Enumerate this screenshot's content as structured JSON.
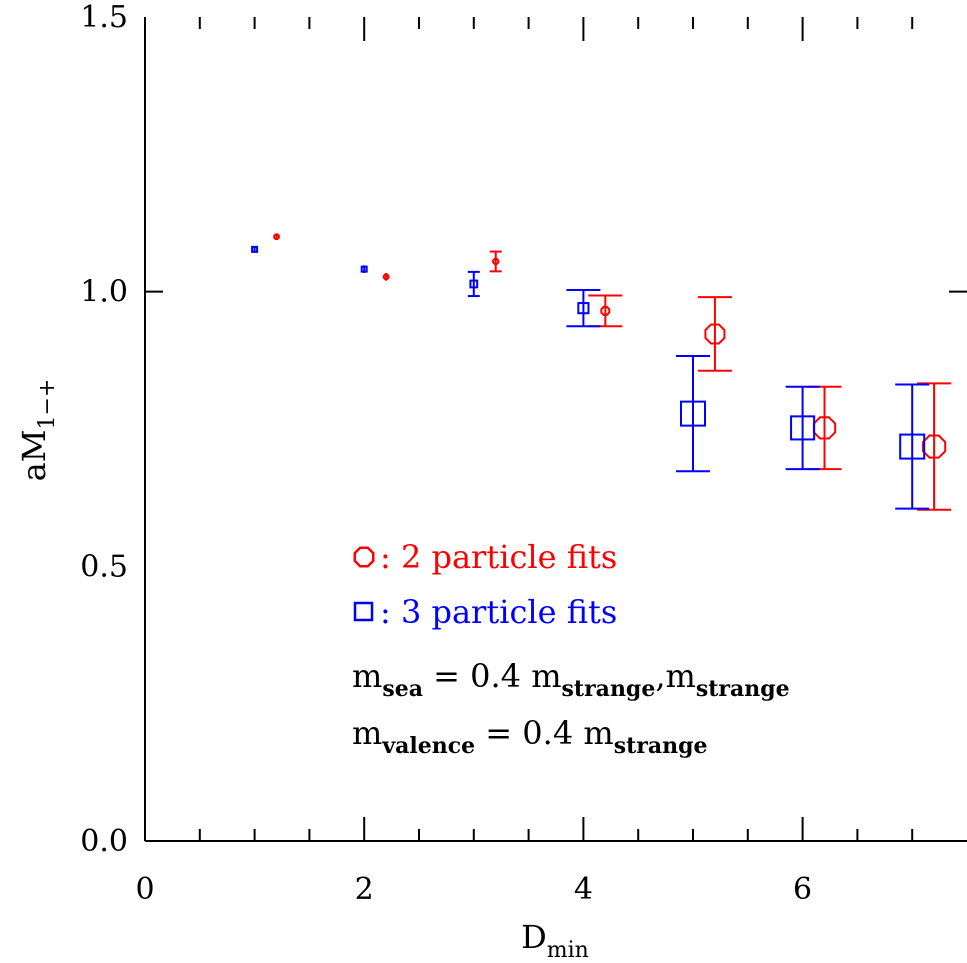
{
  "chart_data": {
    "type": "scatter",
    "title": "",
    "xlabel": "D",
    "xlabel_sub": "min",
    "ylabel": "aM",
    "ylabel_sub": "1−+",
    "xlim": [
      0,
      7.5
    ],
    "ylim": [
      0,
      1.5
    ],
    "x_ticks": [
      "0",
      "2",
      "4",
      "6"
    ],
    "y_ticks": [
      "0.0",
      "0.5",
      "1.0",
      "1.5"
    ],
    "grid": false,
    "legend_position": "lower-center",
    "series": [
      {
        "name": "2 particle fits",
        "legend_symbol": "○",
        "legend_text": ": 2 particle fits",
        "marker": "octagon",
        "color": "#ff0000",
        "points": [
          {
            "x": 1.2,
            "y": 1.1,
            "err": 0.003
          },
          {
            "x": 2.2,
            "y": 1.027,
            "err": 0.007
          },
          {
            "x": 3.2,
            "y": 1.055,
            "err": 0.018
          },
          {
            "x": 4.2,
            "y": 0.965,
            "err": 0.028
          },
          {
            "x": 5.2,
            "y": 0.923,
            "err": 0.067
          },
          {
            "x": 6.2,
            "y": 0.752,
            "err": 0.075
          },
          {
            "x": 7.2,
            "y": 0.718,
            "err": 0.115
          }
        ]
      },
      {
        "name": "3 particle fits",
        "legend_symbol": "□",
        "legend_text": ": 3 particle fits",
        "marker": "square",
        "color": "#0000ff",
        "points": [
          {
            "x": 1.0,
            "y": 1.077,
            "err": 0.004
          },
          {
            "x": 2.0,
            "y": 1.041,
            "err": 0.007
          },
          {
            "x": 3.0,
            "y": 1.014,
            "err": 0.022
          },
          {
            "x": 4.0,
            "y": 0.97,
            "err": 0.033
          },
          {
            "x": 5.0,
            "y": 0.778,
            "err": 0.105
          },
          {
            "x": 6.0,
            "y": 0.752,
            "err": 0.075
          },
          {
            "x": 7.0,
            "y": 0.718,
            "err": 0.113
          }
        ]
      }
    ],
    "notes": [
      {
        "parts": [
          {
            "t": "m",
            "sub": false
          },
          {
            "t": "sea",
            "sub": true
          },
          {
            "t": " = 0.4 m",
            "sub": false
          },
          {
            "t": "strange",
            "sub": true
          },
          {
            "t": ",m",
            "sub": false
          },
          {
            "t": "strange",
            "sub": true
          }
        ]
      },
      {
        "parts": [
          {
            "t": "m",
            "sub": false
          },
          {
            "t": "valence",
            "sub": true
          },
          {
            "t": " = 0.4 m",
            "sub": false
          },
          {
            "t": "strange",
            "sub": true
          }
        ]
      }
    ]
  }
}
